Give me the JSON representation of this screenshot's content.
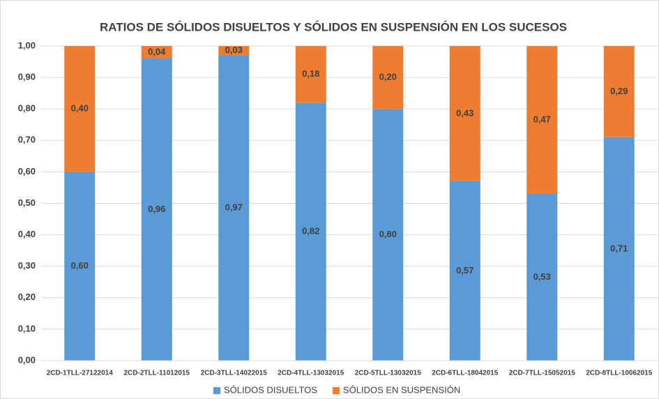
{
  "chart_data": {
    "type": "stacked-bar",
    "title": "RATIOS DE SÓLIDOS DISUELTOS Y SÓLIDOS EN SUSPENSIÓN EN LOS SUCESOS",
    "categories": [
      "2CD-1TLL-27122014",
      "2CD-2TLL-11012015",
      "2CD-3TLL-14022015",
      "2CD-4TLL-13032015",
      "2CD-5TLL-13032015",
      "2CD-6TLL-18042015",
      "2CD-7TLL-15052015",
      "2CD-8TLL-10062015"
    ],
    "series": [
      {
        "name": "SÓLIDOS DISUELTOS",
        "color": "#5b9bd5",
        "values": [
          0.6,
          0.96,
          0.97,
          0.82,
          0.8,
          0.57,
          0.53,
          0.71
        ],
        "value_labels": [
          "0,60",
          "0,96",
          "0,97",
          "0,82",
          "0,80",
          "0,57",
          "0,53",
          "0,71"
        ]
      },
      {
        "name": "SÓLIDOS EN SUSPENSIÓN",
        "color": "#ed7d31",
        "values": [
          0.4,
          0.04,
          0.03,
          0.18,
          0.2,
          0.43,
          0.47,
          0.29
        ],
        "value_labels": [
          "0,40",
          "0,04",
          "0,03",
          "0,18",
          "0,20",
          "0,43",
          "0,47",
          "0,29"
        ]
      }
    ],
    "ylim": [
      0,
      1
    ],
    "yticks": [
      {
        "value": 0,
        "label": "0,00"
      },
      {
        "value": 0.1,
        "label": "0,10"
      },
      {
        "value": 0.2,
        "label": "0,20"
      },
      {
        "value": 0.3,
        "label": "0,30"
      },
      {
        "value": 0.4,
        "label": "0,40"
      },
      {
        "value": 0.5,
        "label": "0,50"
      },
      {
        "value": 0.6,
        "label": "0,60"
      },
      {
        "value": 0.7,
        "label": "0,70"
      },
      {
        "value": 0.8,
        "label": "0,80"
      },
      {
        "value": 0.9,
        "label": "0,90"
      },
      {
        "value": 1,
        "label": "1,00"
      }
    ],
    "grid": true,
    "legend": "bottom"
  }
}
